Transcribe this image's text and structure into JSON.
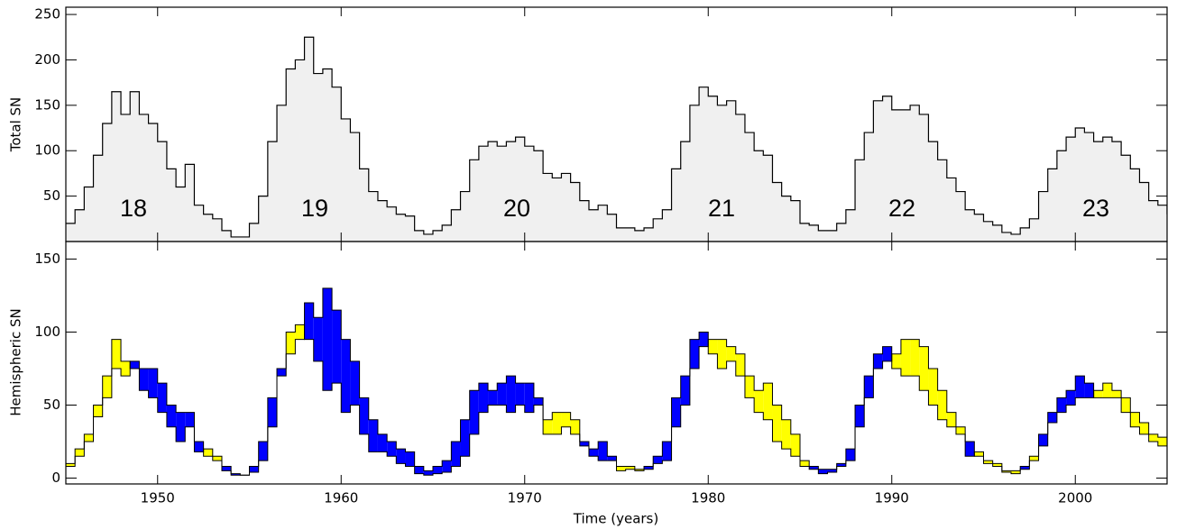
{
  "chart_data": [
    {
      "type": "step-area",
      "ylabel": "Total SN",
      "color": "#f0f0f0",
      "annotations": [
        "18",
        "19",
        "20",
        "21",
        "22",
        "23"
      ],
      "xlim": [
        1945,
        2005
      ],
      "ylim": [
        0,
        258
      ],
      "yticks": [
        50,
        100,
        150,
        200,
        250
      ],
      "x": [
        1945,
        1945.5,
        1946,
        1946.5,
        1947,
        1947.5,
        1948,
        1948.5,
        1949,
        1949.5,
        1950,
        1950.5,
        1951,
        1951.5,
        1952,
        1952.5,
        1953,
        1953.5,
        1954,
        1954.5,
        1955,
        1955.5,
        1956,
        1956.5,
        1957,
        1957.5,
        1958,
        1958.5,
        1959,
        1959.5,
        1960,
        1960.5,
        1961,
        1961.5,
        1962,
        1962.5,
        1963,
        1963.5,
        1964,
        1964.5,
        1965,
        1965.5,
        1966,
        1966.5,
        1967,
        1967.5,
        1968,
        1968.5,
        1969,
        1969.5,
        1970,
        1970.5,
        1971,
        1971.5,
        1972,
        1972.5,
        1973,
        1973.5,
        1974,
        1974.5,
        1975,
        1975.5,
        1976,
        1976.5,
        1977,
        1977.5,
        1978,
        1978.5,
        1979,
        1979.5,
        1980,
        1980.5,
        1981,
        1981.5,
        1982,
        1982.5,
        1983,
        1983.5,
        1984,
        1984.5,
        1985,
        1985.5,
        1986,
        1986.5,
        1987,
        1987.5,
        1988,
        1988.5,
        1989,
        1989.5,
        1990,
        1990.5,
        1991,
        1991.5,
        1992,
        1992.5,
        1993,
        1993.5,
        1994,
        1994.5,
        1995,
        1995.5,
        1996,
        1996.5,
        1997,
        1997.5,
        1998,
        1998.5,
        1999,
        1999.5,
        2000,
        2000.5,
        2001,
        2001.5,
        2002,
        2002.5,
        2003,
        2003.5,
        2004,
        2004.5,
        2005
      ],
      "values": [
        20,
        35,
        60,
        95,
        130,
        165,
        140,
        165,
        140,
        130,
        110,
        80,
        60,
        85,
        40,
        30,
        25,
        12,
        5,
        5,
        20,
        50,
        110,
        150,
        190,
        200,
        225,
        185,
        190,
        170,
        135,
        120,
        80,
        55,
        45,
        38,
        30,
        28,
        12,
        8,
        12,
        18,
        35,
        55,
        90,
        105,
        110,
        105,
        110,
        115,
        105,
        100,
        75,
        70,
        75,
        65,
        45,
        35,
        40,
        30,
        15,
        15,
        12,
        15,
        25,
        35,
        80,
        110,
        150,
        170,
        160,
        150,
        155,
        140,
        120,
        100,
        95,
        65,
        50,
        45,
        20,
        18,
        12,
        12,
        20,
        35,
        90,
        120,
        155,
        160,
        145,
        145,
        150,
        140,
        110,
        90,
        70,
        55,
        35,
        30,
        22,
        18,
        10,
        8,
        15,
        25,
        55,
        80,
        100,
        115,
        125,
        120,
        110,
        115,
        110,
        95,
        80,
        65,
        45,
        40,
        30
      ]
    },
    {
      "type": "step-difference",
      "ylabel": "Hemispheric SN",
      "xlabel": "Time (years)",
      "xlim": [
        1945,
        2005
      ],
      "xticks": [
        1950,
        1960,
        1970,
        1980,
        1990,
        2000
      ],
      "ylim": [
        -4,
        162
      ],
      "yticks": [
        0,
        50,
        100,
        150
      ],
      "x": [
        1945,
        1945.5,
        1946,
        1946.5,
        1947,
        1947.5,
        1948,
        1948.5,
        1949,
        1949.5,
        1950,
        1950.5,
        1951,
        1951.5,
        1952,
        1952.5,
        1953,
        1953.5,
        1954,
        1954.5,
        1955,
        1955.5,
        1956,
        1956.5,
        1957,
        1957.5,
        1958,
        1958.5,
        1959,
        1959.5,
        1960,
        1960.5,
        1961,
        1961.5,
        1962,
        1962.5,
        1963,
        1963.5,
        1964,
        1964.5,
        1965,
        1965.5,
        1966,
        1966.5,
        1967,
        1967.5,
        1968,
        1968.5,
        1969,
        1969.5,
        1970,
        1970.5,
        1971,
        1971.5,
        1972,
        1972.5,
        1973,
        1973.5,
        1974,
        1974.5,
        1975,
        1975.5,
        1976,
        1976.5,
        1977,
        1977.5,
        1978,
        1978.5,
        1979,
        1979.5,
        1980,
        1980.5,
        1981,
        1981.5,
        1982,
        1982.5,
        1983,
        1983.5,
        1984,
        1984.5,
        1985,
        1985.5,
        1986,
        1986.5,
        1987,
        1987.5,
        1988,
        1988.5,
        1989,
        1989.5,
        1990,
        1990.5,
        1991,
        1991.5,
        1992,
        1992.5,
        1993,
        1993.5,
        1994,
        1994.5,
        1995,
        1995.5,
        1996,
        1996.5,
        1997,
        1997.5,
        1998,
        1998.5,
        1999,
        1999.5,
        2000,
        2000.5,
        2001,
        2001.5,
        2002,
        2002.5,
        2003,
        2003.5,
        2004,
        2004.5,
        2005
      ],
      "series": [
        {
          "color": "#0000ff",
          "values": [
            8,
            15,
            25,
            42,
            55,
            75,
            70,
            80,
            75,
            75,
            65,
            50,
            45,
            45,
            25,
            15,
            12,
            8,
            3,
            2,
            8,
            25,
            55,
            75,
            85,
            95,
            120,
            110,
            130,
            115,
            95,
            80,
            55,
            40,
            30,
            25,
            20,
            18,
            8,
            5,
            8,
            12,
            25,
            40,
            60,
            65,
            60,
            65,
            70,
            65,
            65,
            55,
            30,
            30,
            35,
            30,
            25,
            20,
            25,
            15,
            5,
            6,
            5,
            8,
            15,
            25,
            55,
            70,
            95,
            100,
            85,
            75,
            80,
            70,
            55,
            45,
            40,
            25,
            20,
            15,
            8,
            8,
            6,
            6,
            10,
            20,
            50,
            70,
            85,
            90,
            75,
            70,
            70,
            60,
            50,
            40,
            35,
            30,
            25,
            15,
            10,
            8,
            4,
            3,
            8,
            12,
            30,
            45,
            55,
            60,
            70,
            65,
            55,
            55,
            55,
            45,
            35,
            30,
            25,
            22,
            18
          ]
        },
        {
          "color": "#ffff00",
          "values": [
            10,
            20,
            30,
            50,
            70,
            95,
            80,
            75,
            60,
            55,
            45,
            35,
            25,
            35,
            18,
            20,
            15,
            5,
            2,
            2,
            4,
            12,
            35,
            70,
            100,
            105,
            95,
            80,
            60,
            65,
            45,
            50,
            30,
            18,
            18,
            15,
            10,
            8,
            3,
            2,
            3,
            4,
            8,
            15,
            30,
            45,
            50,
            50,
            45,
            50,
            45,
            50,
            40,
            45,
            45,
            40,
            22,
            15,
            12,
            12,
            8,
            8,
            6,
            6,
            10,
            12,
            35,
            50,
            75,
            90,
            95,
            95,
            90,
            85,
            70,
            60,
            65,
            50,
            40,
            30,
            12,
            6,
            3,
            4,
            8,
            12,
            35,
            55,
            75,
            80,
            85,
            95,
            95,
            90,
            75,
            60,
            45,
            35,
            15,
            18,
            12,
            10,
            5,
            5,
            6,
            15,
            22,
            38,
            45,
            50,
            55,
            55,
            60,
            65,
            60,
            55,
            45,
            38,
            30,
            28,
            20
          ]
        }
      ]
    }
  ]
}
